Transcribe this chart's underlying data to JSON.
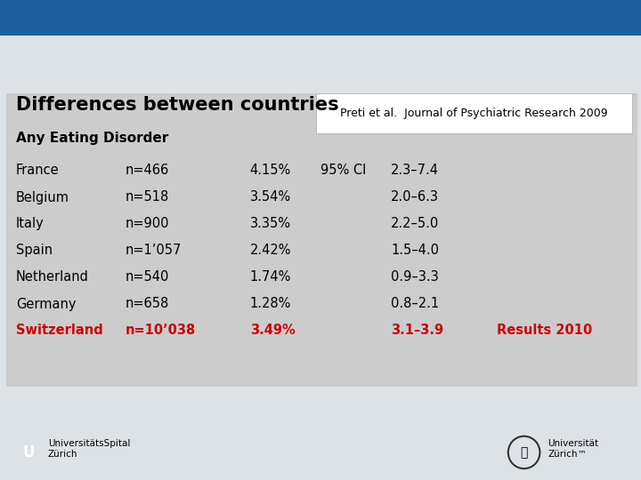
{
  "title": "Differences between countries",
  "subtitle": "Any Eating Disorder",
  "citation": "Preti et al.  Journal of Psychiatric Research 2009",
  "bg_top": "#1B5FA0",
  "bg_main": "#DDE2E6",
  "bg_content": "#CCCCCC",
  "footer_bg": "#DDE2E6",
  "citation_box_color": "#FFFFFF",
  "countries": [
    "France",
    "Belgium",
    "Italy",
    "Spain",
    "Netherland",
    "Germany",
    "Switzerland"
  ],
  "ns": [
    "n=466",
    "n=518",
    "n=900",
    "n=1’057",
    "n=540",
    "n=658",
    "n=10’038"
  ],
  "pcts": [
    "4.15%",
    "3.54%",
    "3.35%",
    "2.42%",
    "1.74%",
    "1.28%",
    "3.49%"
  ],
  "ci_label": "95% CI",
  "cis": [
    "2.3–7.4",
    "2.0–6.3",
    "2.2–5.0",
    "1.5–4.0",
    "0.9–3.3",
    "0.8–2.1",
    "3.1–3.9"
  ],
  "results_label": "Results 2010",
  "highlight_color": "#CC0000",
  "normal_color": "#000000",
  "footer_text_left": "UniversitätsSpital\nZürich",
  "footer_text_right": "Universität\nZürich™"
}
